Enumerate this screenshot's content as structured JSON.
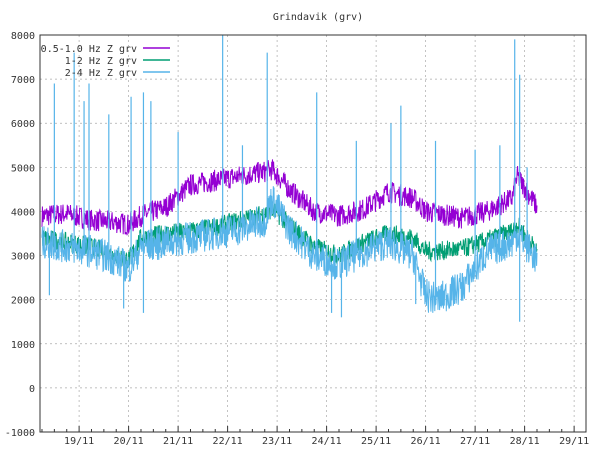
{
  "chart_data": {
    "type": "line",
    "title": "Grindavik (grv)",
    "xlabel": "",
    "ylabel": "",
    "xlim": [
      18.21,
      29.24
    ],
    "ylim": [
      -1000,
      8000
    ],
    "yticks": [
      -1000,
      0,
      1000,
      2000,
      3000,
      4000,
      5000,
      6000,
      7000,
      8000
    ],
    "xticks": [
      {
        "v": 19,
        "label": "19/11"
      },
      {
        "v": 20,
        "label": "20/11"
      },
      {
        "v": 21,
        "label": "21/11"
      },
      {
        "v": 22,
        "label": "22/11"
      },
      {
        "v": 23,
        "label": "23/11"
      },
      {
        "v": 24,
        "label": "24/11"
      },
      {
        "v": 25,
        "label": "25/11"
      },
      {
        "v": 26,
        "label": "26/11"
      },
      {
        "v": 27,
        "label": "27/11"
      },
      {
        "v": 28,
        "label": "28/11"
      },
      {
        "v": 29,
        "label": "29/11"
      }
    ],
    "grid": true,
    "legend_position": "top-left",
    "x": [
      18.25,
      18.75,
      19.25,
      19.75,
      20.0,
      20.25,
      20.75,
      21.25,
      21.75,
      22.25,
      22.75,
      22.9,
      23.25,
      23.75,
      24.25,
      24.75,
      25.25,
      25.75,
      26.0,
      26.25,
      26.75,
      27.25,
      27.75,
      27.85,
      28.25
    ],
    "series": [
      {
        "name": "0.5-1.0 Hz Z grv",
        "color": "#9400d3",
        "values": [
          3900,
          3950,
          3800,
          3750,
          3700,
          3900,
          4100,
          4600,
          4700,
          4800,
          4900,
          4950,
          4500,
          4000,
          3900,
          4050,
          4450,
          4300,
          4000,
          3950,
          3850,
          4000,
          4300,
          4800,
          4100
        ],
        "spikes": []
      },
      {
        "name": "1-2 Hz Z grv",
        "color": "#009e73",
        "values": [
          3400,
          3300,
          3200,
          3000,
          2900,
          3400,
          3500,
          3550,
          3650,
          3800,
          3950,
          4050,
          3700,
          3200,
          3000,
          3300,
          3500,
          3400,
          3100,
          3100,
          3150,
          3350,
          3550,
          3700,
          3100
        ],
        "spikes": []
      },
      {
        "name": "2-4 Hz Z grv",
        "color": "#56b4e9",
        "values": [
          3300,
          3200,
          3100,
          2900,
          2700,
          3200,
          3300,
          3400,
          3500,
          3600,
          3800,
          4300,
          3600,
          3000,
          2800,
          3100,
          3300,
          3000,
          2100,
          2000,
          2300,
          3100,
          3300,
          3500,
          2900
        ],
        "spikes": [
          [
            18.5,
            6900
          ],
          [
            18.9,
            7600
          ],
          [
            19.1,
            6500
          ],
          [
            19.2,
            6900
          ],
          [
            19.6,
            6200
          ],
          [
            20.05,
            6600
          ],
          [
            20.3,
            6700
          ],
          [
            20.45,
            6500
          ],
          [
            21.0,
            5800
          ],
          [
            21.9,
            8000
          ],
          [
            22.3,
            5500
          ],
          [
            22.8,
            7600
          ],
          [
            23.8,
            6700
          ],
          [
            24.6,
            5600
          ],
          [
            25.3,
            6000
          ],
          [
            25.5,
            6400
          ],
          [
            26.2,
            5600
          ],
          [
            27.0,
            5400
          ],
          [
            27.5,
            5500
          ],
          [
            27.8,
            7900
          ],
          [
            27.9,
            7100
          ],
          [
            28.05,
            5000
          ],
          [
            18.4,
            2100
          ],
          [
            19.9,
            1800
          ],
          [
            20.3,
            1700
          ],
          [
            24.1,
            1700
          ],
          [
            24.3,
            1600
          ],
          [
            25.8,
            1900
          ],
          [
            27.9,
            1500
          ]
        ]
      }
    ]
  }
}
